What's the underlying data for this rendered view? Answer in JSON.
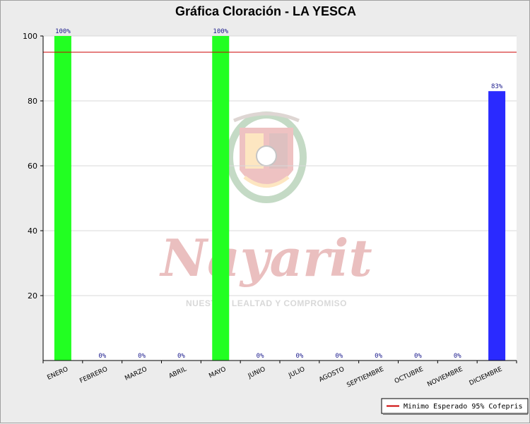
{
  "chart_data": {
    "type": "bar",
    "title": "Gráfica Cloración - LA YESCA",
    "categories": [
      "ENERO",
      "FEBRERO",
      "MARZO",
      "ABRIL",
      "MAYO",
      "JUNIO",
      "JULIO",
      "AGOSTO",
      "SEPTIEMBRE",
      "OCTUBRE",
      "NOVIEMBRE",
      "DICIEMBRE"
    ],
    "values": [
      100,
      0,
      0,
      0,
      100,
      0,
      0,
      0,
      0,
      0,
      0,
      83
    ],
    "data_labels": [
      "100%",
      "0%",
      "0%",
      "0%",
      "100%",
      "0%",
      "0%",
      "0%",
      "0%",
      "0%",
      "0%",
      "83%"
    ],
    "bar_colors": [
      "#22ff22",
      "#22ff22",
      "#22ff22",
      "#22ff22",
      "#22ff22",
      "#22ff22",
      "#22ff22",
      "#22ff22",
      "#22ff22",
      "#22ff22",
      "#22ff22",
      "#2a2aff"
    ],
    "ylim": [
      0,
      100
    ],
    "yticks": [
      20,
      40,
      60,
      80,
      100
    ],
    "reference_line": {
      "value": 95,
      "color": "#cc0000",
      "label": "Minimo Esperado 95% Cofepris"
    },
    "grid": true,
    "legend_position": "bottom-right",
    "xlabel": "",
    "ylabel": ""
  },
  "watermark": {
    "text": "Nayarit",
    "subtitle": "NUESTRA LEALTAD Y COMPROMISO",
    "icon": "state-coat-of-arms-icon"
  }
}
